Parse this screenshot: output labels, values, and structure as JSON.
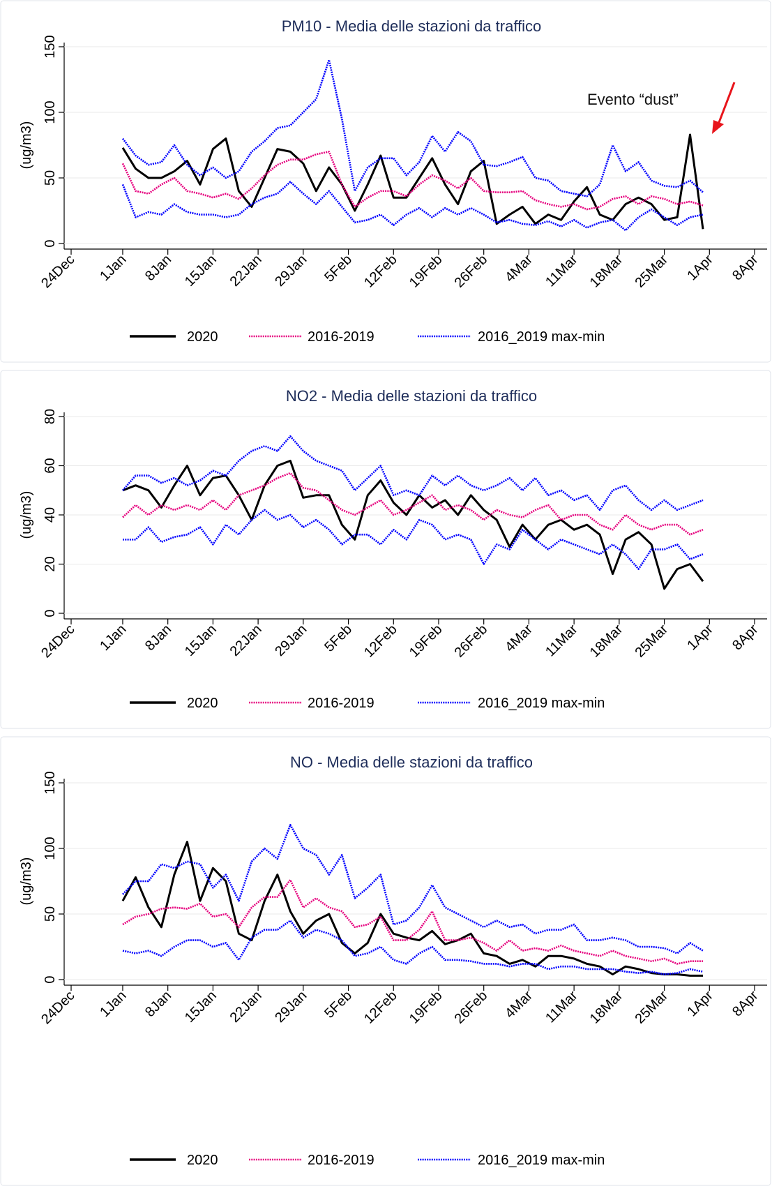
{
  "chart_data": [
    {
      "type": "line",
      "title": "PM10 - Media delle stazioni da traffico",
      "y_label": "(ug/m3)",
      "annotation": "Evento “dust”",
      "x": [
        "1Jan",
        "3Jan",
        "5Jan",
        "7Jan",
        "9Jan",
        "11Jan",
        "13Jan",
        "15Jan",
        "17Jan",
        "19Jan",
        "21Jan",
        "23Jan",
        "25Jan",
        "27Jan",
        "29Jan",
        "31Jan",
        "2Feb",
        "4Feb",
        "6Feb",
        "8Feb",
        "10Feb",
        "12Feb",
        "14Feb",
        "16Feb",
        "18Feb",
        "20Feb",
        "22Feb",
        "24Feb",
        "26Feb",
        "28Feb",
        "1Mar",
        "3Mar",
        "5Mar",
        "7Mar",
        "9Mar",
        "11Mar",
        "13Mar",
        "15Mar",
        "17Mar",
        "19Mar",
        "21Mar",
        "23Mar",
        "25Mar",
        "27Mar",
        "29Mar",
        "31Mar"
      ],
      "xlim": [
        "24Dec",
        "8Apr"
      ],
      "xticks": [
        "24Dec",
        "1Jan",
        "8Jan",
        "15Jan",
        "22Jan",
        "29Jan",
        "5Feb",
        "12Feb",
        "19Feb",
        "26Feb",
        "4Mar",
        "11Mar",
        "18Mar",
        "25Mar",
        "1Apr",
        "8Apr"
      ],
      "ylim": [
        0,
        150
      ],
      "yticks": [
        0,
        50,
        100,
        150
      ],
      "grid": true,
      "series": [
        {
          "name": "2020",
          "color": "#000000",
          "style": "solid",
          "values": [
            73,
            57,
            50,
            50,
            55,
            63,
            45,
            72,
            80,
            40,
            28,
            50,
            72,
            70,
            61,
            40,
            58,
            45,
            25,
            45,
            67,
            35,
            35,
            50,
            65,
            45,
            30,
            55,
            63,
            15,
            22,
            28,
            15,
            22,
            18,
            32,
            43,
            22,
            18,
            30,
            35,
            30,
            18,
            20,
            83,
            11
          ]
        },
        {
          "name": "2016-2019",
          "color": "#e6007e",
          "style": "dotted",
          "values": [
            61,
            40,
            38,
            45,
            50,
            40,
            38,
            35,
            38,
            34,
            42,
            52,
            60,
            64,
            64,
            68,
            70,
            45,
            28,
            35,
            40,
            40,
            36,
            45,
            52,
            48,
            42,
            50,
            40,
            39,
            39,
            40,
            33,
            30,
            28,
            30,
            26,
            28,
            34,
            36,
            30,
            36,
            34,
            30,
            32,
            29
          ]
        },
        {
          "name": "2016_2019 max-min",
          "color": "#0000ff",
          "style": "dotted",
          "high": [
            80,
            67,
            60,
            62,
            75,
            60,
            52,
            58,
            50,
            55,
            70,
            78,
            88,
            90,
            100,
            110,
            140,
            95,
            40,
            58,
            65,
            65,
            52,
            62,
            82,
            70,
            85,
            78,
            60,
            59,
            62,
            66,
            50,
            48,
            40,
            38,
            36,
            45,
            75,
            55,
            62,
            48,
            44,
            43,
            48,
            39
          ],
          "low": [
            45,
            20,
            24,
            22,
            30,
            24,
            22,
            22,
            20,
            22,
            30,
            35,
            38,
            47,
            38,
            30,
            40,
            28,
            16,
            18,
            22,
            14,
            22,
            27,
            20,
            27,
            22,
            27,
            22,
            16,
            18,
            15,
            14,
            17,
            13,
            18,
            12,
            16,
            18,
            10,
            20,
            26,
            20,
            14,
            20,
            22
          ]
        }
      ]
    },
    {
      "type": "line",
      "title": "NO2 - Media delle stazioni da traffico",
      "y_label": "(ug/m3)",
      "x": [
        "1Jan",
        "3Jan",
        "5Jan",
        "7Jan",
        "9Jan",
        "11Jan",
        "13Jan",
        "15Jan",
        "17Jan",
        "19Jan",
        "21Jan",
        "23Jan",
        "25Jan",
        "27Jan",
        "29Jan",
        "31Jan",
        "2Feb",
        "4Feb",
        "6Feb",
        "8Feb",
        "10Feb",
        "12Feb",
        "14Feb",
        "16Feb",
        "18Feb",
        "20Feb",
        "22Feb",
        "24Feb",
        "26Feb",
        "28Feb",
        "1Mar",
        "3Mar",
        "5Mar",
        "7Mar",
        "9Mar",
        "11Mar",
        "13Mar",
        "15Mar",
        "17Mar",
        "19Mar",
        "21Mar",
        "23Mar",
        "25Mar",
        "27Mar",
        "29Mar",
        "31Mar"
      ],
      "xlim": [
        "24Dec",
        "8Apr"
      ],
      "xticks": [
        "24Dec",
        "1Jan",
        "8Jan",
        "15Jan",
        "22Jan",
        "29Jan",
        "5Feb",
        "12Feb",
        "19Feb",
        "26Feb",
        "4Mar",
        "11Mar",
        "18Mar",
        "25Mar",
        "1Apr",
        "8Apr"
      ],
      "ylim": [
        0,
        80
      ],
      "yticks": [
        0,
        20,
        40,
        60,
        80
      ],
      "grid": true,
      "series": [
        {
          "name": "2020",
          "color": "#000000",
          "style": "solid",
          "values": [
            50,
            52,
            50,
            43,
            52,
            60,
            48,
            55,
            56,
            48,
            38,
            52,
            60,
            62,
            47,
            48,
            48,
            36,
            30,
            48,
            54,
            45,
            40,
            48,
            43,
            46,
            40,
            48,
            42,
            38,
            27,
            36,
            30,
            36,
            38,
            34,
            36,
            32,
            16,
            30,
            33,
            28,
            10,
            18,
            20,
            13
          ]
        },
        {
          "name": "2016-2019",
          "color": "#e6007e",
          "style": "dotted",
          "values": [
            39,
            44,
            40,
            44,
            42,
            44,
            42,
            46,
            42,
            48,
            50,
            52,
            55,
            57,
            51,
            50,
            46,
            42,
            40,
            43,
            46,
            40,
            42,
            45,
            48,
            42,
            44,
            42,
            38,
            42,
            40,
            39,
            42,
            44,
            38,
            40,
            40,
            36,
            34,
            40,
            36,
            34,
            36,
            36,
            32,
            34
          ]
        },
        {
          "name": "2016_2019 max-min",
          "color": "#0000ff",
          "style": "dotted",
          "high": [
            50,
            56,
            56,
            53,
            55,
            52,
            54,
            58,
            56,
            62,
            66,
            68,
            66,
            72,
            66,
            62,
            60,
            58,
            50,
            55,
            60,
            48,
            50,
            48,
            56,
            52,
            56,
            52,
            50,
            52,
            55,
            50,
            55,
            48,
            50,
            46,
            48,
            42,
            50,
            52,
            46,
            42,
            46,
            42,
            44,
            46
          ],
          "low": [
            30,
            30,
            35,
            29,
            31,
            32,
            35,
            28,
            36,
            32,
            38,
            42,
            38,
            40,
            35,
            38,
            34,
            28,
            32,
            32,
            28,
            34,
            30,
            38,
            36,
            30,
            32,
            30,
            20,
            28,
            26,
            34,
            30,
            26,
            30,
            28,
            26,
            24,
            28,
            24,
            18,
            26,
            26,
            28,
            22,
            24
          ]
        }
      ]
    },
    {
      "type": "line",
      "title": "NO - Media delle stazioni da traffico",
      "y_label": "(ug/m3)",
      "x": [
        "1Jan",
        "3Jan",
        "5Jan",
        "7Jan",
        "9Jan",
        "11Jan",
        "13Jan",
        "15Jan",
        "17Jan",
        "19Jan",
        "21Jan",
        "23Jan",
        "25Jan",
        "27Jan",
        "29Jan",
        "31Jan",
        "2Feb",
        "4Feb",
        "6Feb",
        "8Feb",
        "10Feb",
        "12Feb",
        "14Feb",
        "16Feb",
        "18Feb",
        "20Feb",
        "22Feb",
        "24Feb",
        "26Feb",
        "28Feb",
        "1Mar",
        "3Mar",
        "5Mar",
        "7Mar",
        "9Mar",
        "11Mar",
        "13Mar",
        "15Mar",
        "17Mar",
        "19Mar",
        "21Mar",
        "23Mar",
        "25Mar",
        "27Mar",
        "29Mar",
        "31Mar"
      ],
      "xlim": [
        "24Dec",
        "8Apr"
      ],
      "xticks": [
        "24Dec",
        "1Jan",
        "8Jan",
        "15Jan",
        "22Jan",
        "29Jan",
        "5Feb",
        "12Feb",
        "19Feb",
        "26Feb",
        "4Mar",
        "11Mar",
        "18Mar",
        "25Mar",
        "1Apr",
        "8Apr"
      ],
      "ylim": [
        0,
        150
      ],
      "yticks": [
        0,
        50,
        100,
        150
      ],
      "grid": true,
      "series": [
        {
          "name": "2020",
          "color": "#000000",
          "style": "solid",
          "values": [
            60,
            78,
            55,
            40,
            80,
            105,
            60,
            85,
            75,
            35,
            30,
            60,
            80,
            52,
            35,
            45,
            50,
            28,
            20,
            28,
            50,
            35,
            32,
            30,
            37,
            27,
            30,
            35,
            20,
            18,
            12,
            15,
            10,
            18,
            18,
            16,
            12,
            10,
            4,
            10,
            8,
            5,
            4,
            4,
            3,
            3
          ]
        },
        {
          "name": "2016-2019",
          "color": "#e6007e",
          "style": "dotted",
          "values": [
            42,
            48,
            50,
            54,
            55,
            54,
            58,
            48,
            50,
            40,
            55,
            63,
            63,
            76,
            55,
            62,
            55,
            52,
            40,
            42,
            48,
            30,
            30,
            38,
            52,
            30,
            30,
            32,
            28,
            22,
            30,
            22,
            24,
            22,
            26,
            22,
            20,
            18,
            22,
            18,
            16,
            14,
            16,
            12,
            14,
            14
          ]
        },
        {
          "name": "2016_2019 max-min",
          "color": "#0000ff",
          "style": "dotted",
          "high": [
            65,
            75,
            75,
            88,
            85,
            90,
            88,
            70,
            80,
            60,
            90,
            100,
            92,
            118,
            100,
            95,
            80,
            95,
            62,
            70,
            80,
            42,
            45,
            55,
            72,
            55,
            50,
            45,
            40,
            45,
            40,
            42,
            35,
            38,
            38,
            42,
            30,
            30,
            32,
            30,
            25,
            25,
            24,
            20,
            28,
            22
          ],
          "low": [
            22,
            20,
            22,
            18,
            25,
            30,
            30,
            25,
            28,
            15,
            32,
            38,
            38,
            45,
            32,
            38,
            35,
            30,
            18,
            20,
            25,
            15,
            12,
            20,
            25,
            15,
            15,
            14,
            12,
            12,
            10,
            12,
            12,
            8,
            10,
            10,
            8,
            8,
            8,
            6,
            5,
            6,
            4,
            5,
            8,
            6
          ]
        }
      ]
    }
  ]
}
